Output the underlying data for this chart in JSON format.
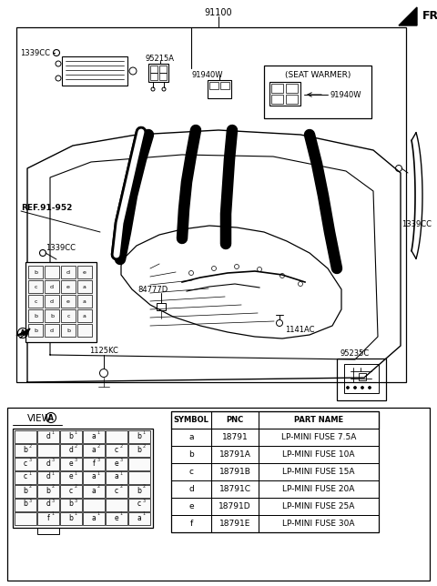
{
  "bg_color": "#ffffff",
  "part_number_top": "91100",
  "fr_label": "FR.",
  "labels": {
    "1339CC_top_left": "1339CC",
    "95215A": "95215A",
    "91940W_left": "91940W",
    "seat_warmer": "(SEAT WARMER)",
    "91940W_right": "91940W",
    "1339CC_right": "1339CC",
    "ref": "REF.91-952",
    "1339CC_mid_left": "1339CC",
    "84777D": "84777D",
    "1125KC": "1125KC",
    "1141AC": "1141AC",
    "95235C": "95235C",
    "A_label": "A"
  },
  "table_headers": [
    "SYMBOL",
    "PNC",
    "PART NAME"
  ],
  "table_rows": [
    [
      "a",
      "18791",
      "LP-MINI FUSE 7.5A"
    ],
    [
      "b",
      "18791A",
      "LP-MINI FUSE 10A"
    ],
    [
      "c",
      "18791B",
      "LP-MINI FUSE 15A"
    ],
    [
      "d",
      "18791C",
      "LP-MINI FUSE 20A"
    ],
    [
      "e",
      "18791D",
      "LP-MINI FUSE 25A"
    ],
    [
      "f",
      "18791E",
      "LP-MINI FUSE 30A"
    ]
  ],
  "view_label": "VIEW",
  "fuse_grid": [
    [
      "",
      "d",
      "b",
      "a",
      "",
      "b"
    ],
    [
      "b",
      "",
      "d",
      "a",
      "c",
      "b"
    ],
    [
      "c",
      "d",
      "e",
      "f",
      "e",
      ""
    ],
    [
      "c",
      "d",
      "e",
      "a",
      "a",
      ""
    ],
    [
      "b",
      "b",
      "c",
      "a",
      "c",
      "b"
    ],
    [
      "b",
      "d",
      "b",
      "",
      "",
      "c"
    ],
    [
      "",
      "f",
      "b",
      "a",
      "e",
      "a"
    ]
  ]
}
